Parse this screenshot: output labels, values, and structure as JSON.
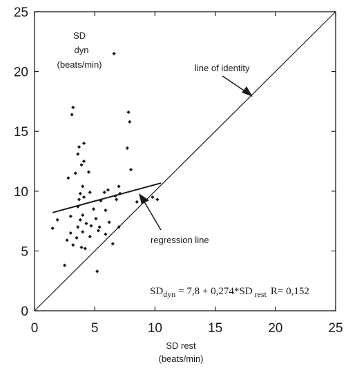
{
  "chart_data": {
    "type": "scatter",
    "xlim": [
      0,
      25
    ],
    "ylim": [
      0,
      25
    ],
    "x_ticks": [
      0,
      5,
      10,
      15,
      20,
      25
    ],
    "y_ticks": [
      0,
      5,
      10,
      15,
      20,
      25
    ],
    "xlabel_line1": "SD rest",
    "xlabel_line2": "(beats/min)",
    "ylabel_line1": "SD",
    "ylabel_line2": "dyn",
    "ylabel_line3": "(beats/min)",
    "identity_label": "line of identity",
    "regression_label": "regression line",
    "formula": {
      "lhs": "SD",
      "lhs_sub": "dyn",
      "middle": "= 7,8 + 0,274*SD",
      "rhs_sub": "rest",
      "r_text": "R= 0,152"
    },
    "regression": {
      "intercept": 7.8,
      "slope": 0.274,
      "x_from": 1.5,
      "x_to": 10.5
    },
    "identity": {
      "x_from": 0,
      "x_to": 25
    },
    "grid": false,
    "points": [
      [
        6.6,
        21.5
      ],
      [
        3.2,
        17.0
      ],
      [
        3.1,
        16.4
      ],
      [
        7.8,
        16.6
      ],
      [
        7.9,
        15.8
      ],
      [
        4.1,
        14.0
      ],
      [
        3.7,
        13.7
      ],
      [
        7.7,
        13.6
      ],
      [
        3.6,
        13.1
      ],
      [
        4.1,
        12.5
      ],
      [
        3.9,
        12.2
      ],
      [
        8.0,
        11.8
      ],
      [
        3.4,
        11.5
      ],
      [
        4.5,
        11.6
      ],
      [
        2.8,
        11.1
      ],
      [
        4.0,
        10.4
      ],
      [
        6.1,
        10.1
      ],
      [
        7.0,
        10.4
      ],
      [
        3.8,
        9.8
      ],
      [
        4.6,
        9.9
      ],
      [
        5.8,
        9.9
      ],
      [
        7.1,
        9.8
      ],
      [
        6.7,
        9.6
      ],
      [
        4.1,
        9.5
      ],
      [
        3.7,
        9.3
      ],
      [
        6.8,
        9.3
      ],
      [
        8.5,
        9.1
      ],
      [
        9.8,
        9.5
      ],
      [
        10.2,
        9.3
      ],
      [
        5.5,
        9.2
      ],
      [
        3.6,
        8.7
      ],
      [
        4.9,
        8.5
      ],
      [
        5.9,
        8.4
      ],
      [
        4.0,
        8.0
      ],
      [
        3.0,
        7.9
      ],
      [
        3.8,
        7.6
      ],
      [
        5.1,
        7.7
      ],
      [
        6.2,
        7.4
      ],
      [
        1.9,
        7.6
      ],
      [
        4.3,
        7.3
      ],
      [
        1.5,
        6.9
      ],
      [
        3.6,
        7.0
      ],
      [
        4.7,
        7.1
      ],
      [
        5.4,
        7.0
      ],
      [
        7.0,
        7.0
      ],
      [
        3.0,
        6.5
      ],
      [
        4.0,
        6.6
      ],
      [
        5.9,
        6.4
      ],
      [
        5.3,
        6.7
      ],
      [
        4.6,
        6.2
      ],
      [
        3.5,
        6.1
      ],
      [
        2.7,
        5.9
      ],
      [
        6.5,
        5.6
      ],
      [
        3.2,
        5.5
      ],
      [
        3.9,
        5.3
      ],
      [
        4.2,
        5.2
      ],
      [
        2.5,
        3.8
      ],
      [
        5.2,
        3.3
      ]
    ]
  }
}
